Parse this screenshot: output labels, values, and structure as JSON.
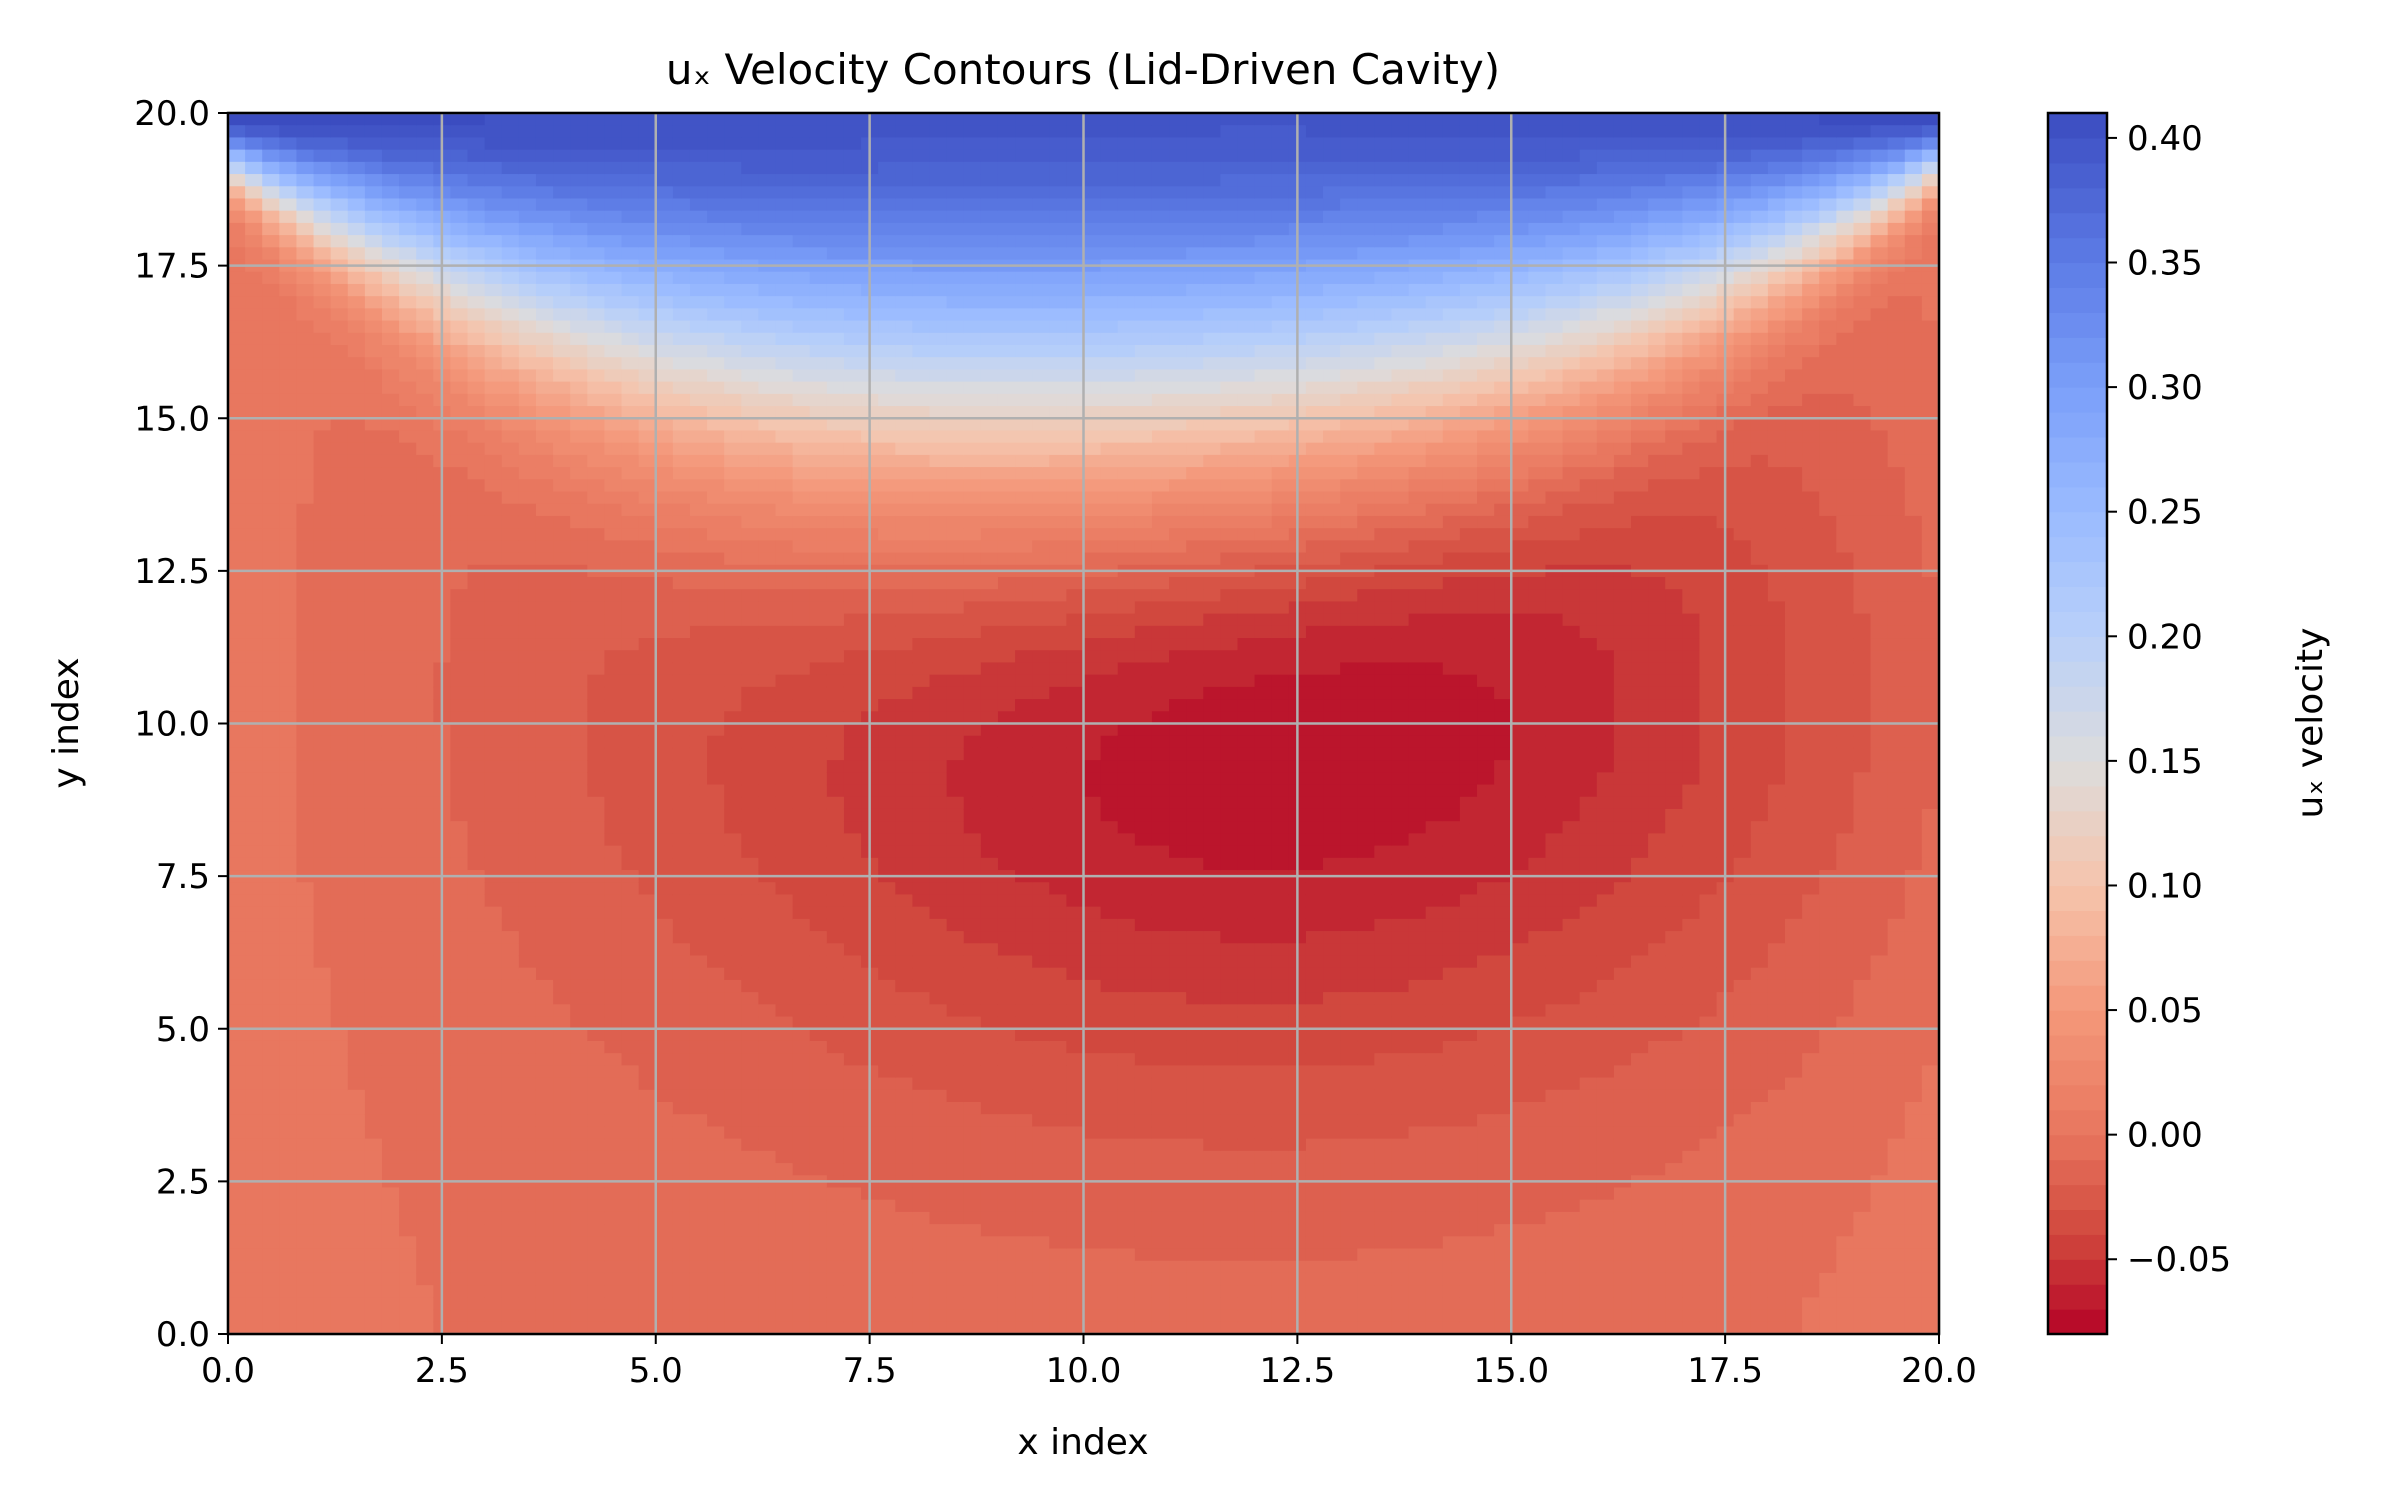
{
  "chart_data": {
    "type": "contour",
    "title": "uₓ Velocity Contours (Lid-Driven Cavity)",
    "xlabel": "x index",
    "ylabel": "y index",
    "xlim": [
      0,
      20
    ],
    "ylim": [
      0,
      20
    ],
    "xticks": [
      "0.0",
      "2.5",
      "5.0",
      "7.5",
      "10.0",
      "12.5",
      "15.0",
      "17.5",
      "20.0"
    ],
    "yticks": [
      "0.0",
      "2.5",
      "5.0",
      "7.5",
      "10.0",
      "12.5",
      "15.0",
      "17.5",
      "20.0"
    ],
    "grid": true,
    "colormap": "coolwarm_r",
    "colorbar": {
      "label": "uₓ velocity",
      "range": [
        -0.08,
        0.41
      ],
      "ticks": [
        "0.40",
        "0.35",
        "0.30",
        "0.25",
        "0.20",
        "0.15",
        "0.10",
        "0.05",
        "0.00",
        "−0.05"
      ],
      "tick_values": [
        0.4,
        0.35,
        0.3,
        0.25,
        0.2,
        0.15,
        0.1,
        0.05,
        0.0,
        -0.05
      ],
      "color_stops": [
        {
          "v": -0.08,
          "color": "#b40426"
        },
        {
          "v": -0.04,
          "color": "#d0473d"
        },
        {
          "v": 0.0,
          "color": "#e8765e"
        },
        {
          "v": 0.05,
          "color": "#f4987a"
        },
        {
          "v": 0.1,
          "color": "#f5c4ac"
        },
        {
          "v": 0.15,
          "color": "#dddcdc"
        },
        {
          "v": 0.2,
          "color": "#b9d0f9"
        },
        {
          "v": 0.25,
          "color": "#9abbff"
        },
        {
          "v": 0.3,
          "color": "#7b9ff9"
        },
        {
          "v": 0.35,
          "color": "#5d7ce6"
        },
        {
          "v": 0.41,
          "color": "#3b4cc0"
        }
      ]
    },
    "field_model": {
      "lid_velocity": 0.41,
      "lid_layer_thickness": 1.6,
      "vortex_center": [
        12.0,
        10.5
      ],
      "vortex_min": -0.075,
      "vortex_radius": [
        6.5,
        6.0
      ],
      "background": -0.005,
      "wall_value": 0.005
    }
  }
}
